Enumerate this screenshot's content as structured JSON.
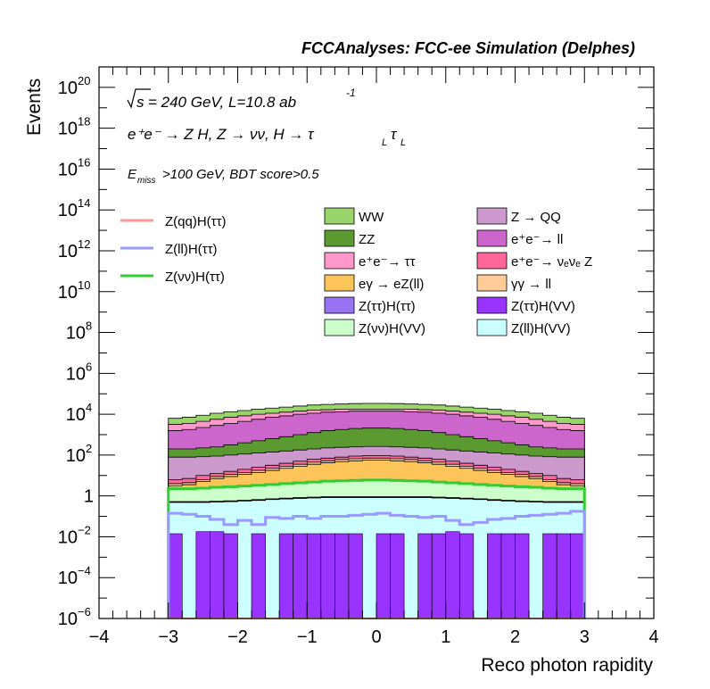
{
  "colors": {
    "WW": "#99d56a",
    "ZZ": "#5a9a31",
    "ee_tautau": "#ff99cc",
    "egamma_eZll": "#fdc559",
    "Ztautau_Htautau": "#9a73f5",
    "Znunu_HVV": "#ccffcc",
    "Z_QQ": "#cc99cc",
    "ee_ll": "#cc66cc",
    "ee_nunuZ": "#ff6699",
    "gammagamma_ll": "#ffcc99",
    "Ztautau_HVV": "#9933ff",
    "Zll_HVV": "#ccffff",
    "Zqq_Htautau_line": "#ff9999",
    "Zll_Htautau_line": "#9999ff",
    "Znunu_Htautau_line": "#33cc33"
  },
  "chart_data": {
    "type": "bar",
    "title": "FCCAnalyses: FCC-ee Simulation (Delphes)",
    "xlabel": "Reco photon rapidity",
    "ylabel": "Events",
    "xlim": [
      -4,
      4
    ],
    "ylim_log10": [
      -6,
      21
    ],
    "log_y": true,
    "x_ticks": [
      "−4",
      "−3",
      "−2",
      "−1",
      "0",
      "1",
      "2",
      "3",
      "4"
    ],
    "y_ticks": [
      {
        "base": "10",
        "exp": "−6"
      },
      {
        "base": "10",
        "exp": "−4"
      },
      {
        "base": "10",
        "exp": "−2"
      },
      {
        "base": "1",
        "exp": ""
      },
      {
        "base": "10",
        "exp": "2"
      },
      {
        "base": "10",
        "exp": "4"
      },
      {
        "base": "10",
        "exp": "6"
      },
      {
        "base": "10",
        "exp": "8"
      },
      {
        "base": "10",
        "exp": "10"
      },
      {
        "base": "10",
        "exp": "12"
      },
      {
        "base": "10",
        "exp": "14"
      },
      {
        "base": "10",
        "exp": "16"
      },
      {
        "base": "10",
        "exp": "18"
      },
      {
        "base": "10",
        "exp": "20"
      }
    ],
    "annotations": {
      "energy_sqrt": "s",
      "energy_rest": " = 240 GeV, L=10.8 ab",
      "energy_sup": "-1",
      "process_main": "e⁺e⁻ → Z H, Z → νν, H → τ",
      "process_sub1": "L",
      "process_tau2": "τ",
      "process_sub2": "L",
      "cut_E": "E",
      "cut_sub": "miss",
      "cut_rest": ">100 GeV, BDT score>0.5"
    },
    "x_bins_from": -3,
    "x_bins_to": 3,
    "n_bins": 30,
    "series_stack_order": [
      "Zll_HVV",
      "Ztautau_HVV",
      "Ztautau_Htautau",
      "Znunu_HVV",
      "egamma_eZll",
      "gammagamma_ll",
      "ee_nunuZ",
      "Z_QQ",
      "ZZ",
      "ee_ll",
      "ee_tautau",
      "WW"
    ],
    "stack_tops_log10": {
      "Zll_HVV": [
        -0.32,
        -0.32,
        -0.32,
        -0.3,
        -0.28,
        -0.25,
        -0.22,
        -0.18,
        -0.15,
        -0.12,
        -0.1,
        -0.08,
        -0.08,
        -0.08,
        -0.08,
        -0.08,
        -0.08,
        -0.08,
        -0.08,
        -0.1,
        -0.12,
        -0.15,
        -0.18,
        -0.22,
        -0.25,
        -0.28,
        -0.3,
        -0.32,
        -0.32,
        -0.32
      ],
      "Ztautau_HVV": [
        -0.3,
        -0.3,
        -0.3,
        -0.28,
        -0.26,
        -0.23,
        -0.2,
        -0.16,
        -0.13,
        -0.1,
        -0.08,
        -0.06,
        -0.06,
        -0.06,
        -0.06,
        -0.06,
        -0.06,
        -0.06,
        -0.06,
        -0.08,
        -0.1,
        -0.13,
        -0.16,
        -0.2,
        -0.23,
        -0.26,
        -0.28,
        -0.3,
        -0.3,
        -0.3
      ],
      "Ztautau_Htautau": [
        -0.28,
        -0.28,
        -0.28,
        -0.26,
        -0.24,
        -0.21,
        -0.18,
        -0.14,
        -0.11,
        -0.08,
        -0.06,
        -0.04,
        -0.04,
        -0.04,
        -0.04,
        -0.04,
        -0.04,
        -0.04,
        -0.04,
        -0.06,
        -0.08,
        -0.11,
        -0.14,
        -0.18,
        -0.21,
        -0.24,
        -0.26,
        -0.28,
        -0.28,
        -0.28
      ],
      "Znunu_HVV": [
        0.35,
        0.35,
        0.38,
        0.42,
        0.45,
        0.48,
        0.52,
        0.56,
        0.6,
        0.64,
        0.68,
        0.72,
        0.74,
        0.76,
        0.78,
        0.78,
        0.76,
        0.74,
        0.72,
        0.68,
        0.64,
        0.6,
        0.56,
        0.52,
        0.48,
        0.45,
        0.42,
        0.38,
        0.35,
        0.35
      ],
      "egamma_eZll": [
        0.5,
        0.55,
        0.7,
        0.85,
        0.95,
        1.05,
        1.15,
        1.25,
        1.35,
        1.45,
        1.55,
        1.62,
        1.68,
        1.72,
        1.75,
        1.75,
        1.72,
        1.68,
        1.62,
        1.55,
        1.45,
        1.35,
        1.25,
        1.15,
        1.05,
        0.95,
        0.85,
        0.7,
        0.55,
        0.5
      ],
      "gammagamma_ll": [
        0.6,
        0.65,
        0.8,
        0.95,
        1.05,
        1.15,
        1.25,
        1.35,
        1.45,
        1.55,
        1.65,
        1.72,
        1.78,
        1.82,
        1.85,
        1.85,
        1.82,
        1.78,
        1.72,
        1.65,
        1.55,
        1.45,
        1.35,
        1.25,
        1.15,
        1.05,
        0.95,
        0.8,
        0.65,
        0.6
      ],
      "ee_nunuZ": [
        0.8,
        0.85,
        1.0,
        1.1,
        1.2,
        1.3,
        1.4,
        1.5,
        1.6,
        1.7,
        1.8,
        1.85,
        1.9,
        1.95,
        1.98,
        1.98,
        1.95,
        1.9,
        1.85,
        1.8,
        1.7,
        1.6,
        1.5,
        1.4,
        1.3,
        1.2,
        1.1,
        1.0,
        0.85,
        0.8
      ],
      "Z_QQ": [
        1.9,
        1.9,
        1.92,
        1.95,
        2.0,
        2.05,
        2.1,
        2.15,
        2.2,
        2.25,
        2.3,
        2.35,
        2.38,
        2.4,
        2.42,
        2.42,
        2.4,
        2.38,
        2.35,
        2.3,
        2.25,
        2.2,
        2.15,
        2.1,
        2.05,
        2.0,
        1.95,
        1.92,
        1.9,
        1.9
      ],
      "ZZ": [
        2.3,
        2.3,
        2.35,
        2.4,
        2.5,
        2.6,
        2.7,
        2.8,
        2.9,
        3.0,
        3.1,
        3.2,
        3.25,
        3.3,
        3.32,
        3.32,
        3.3,
        3.25,
        3.2,
        3.1,
        3.0,
        2.9,
        2.8,
        2.7,
        2.6,
        2.5,
        2.4,
        2.35,
        2.3,
        2.3
      ],
      "ee_ll": [
        3.2,
        3.25,
        3.35,
        3.45,
        3.55,
        3.65,
        3.75,
        3.85,
        3.92,
        4.0,
        4.05,
        4.1,
        4.12,
        4.15,
        4.15,
        4.15,
        4.15,
        4.12,
        4.1,
        4.05,
        4.0,
        3.92,
        3.85,
        3.75,
        3.65,
        3.55,
        3.45,
        3.35,
        3.25,
        3.2
      ],
      "ee_tautau": [
        3.5,
        3.55,
        3.65,
        3.75,
        3.85,
        3.92,
        4.0,
        4.05,
        4.1,
        4.15,
        4.2,
        4.22,
        4.25,
        4.25,
        4.25,
        4.25,
        4.25,
        4.25,
        4.22,
        4.2,
        4.15,
        4.1,
        4.05,
        4.0,
        3.92,
        3.85,
        3.75,
        3.65,
        3.55,
        3.5
      ],
      "WW": [
        3.8,
        3.85,
        3.95,
        4.05,
        4.12,
        4.18,
        4.25,
        4.3,
        4.35,
        4.4,
        4.45,
        4.48,
        4.5,
        4.52,
        4.53,
        4.53,
        4.52,
        4.5,
        4.48,
        4.45,
        4.4,
        4.35,
        4.3,
        4.25,
        4.18,
        4.12,
        4.05,
        3.95,
        3.85,
        3.8
      ]
    },
    "ztautau_hvv_spikes_log10": [
      -1.85,
      -6,
      -1.75,
      -1.75,
      -1.85,
      -6,
      -1.85,
      -6,
      -1.85,
      -1.85,
      -1.85,
      -1.85,
      -1.85,
      -1.85,
      -6,
      -1.85,
      -1.85,
      -6,
      -1.85,
      -1.85,
      -1.75,
      -1.85,
      -6,
      -1.85,
      -1.85,
      -1.85,
      -6,
      -1.85,
      -1.85,
      -1.85
    ],
    "line_series_log10": {
      "Znunu_Htautau_line": [
        0.35,
        0.35,
        0.38,
        0.42,
        0.45,
        0.48,
        0.52,
        0.56,
        0.6,
        0.64,
        0.68,
        0.72,
        0.74,
        0.76,
        0.78,
        0.78,
        0.76,
        0.74,
        0.72,
        0.68,
        0.64,
        0.6,
        0.56,
        0.52,
        0.48,
        0.45,
        0.42,
        0.38,
        0.35,
        0.35
      ],
      "Zll_Htautau_line": [
        -0.85,
        -0.9,
        -1.0,
        -1.15,
        -1.4,
        -1.2,
        -1.4,
        -1.05,
        -1.1,
        -1.0,
        -1.1,
        -1.0,
        -1.0,
        -0.95,
        -0.9,
        -0.85,
        -0.95,
        -1.0,
        -1.05,
        -1.0,
        -1.2,
        -1.4,
        -1.3,
        -1.15,
        -1.1,
        -1.0,
        -0.95,
        -0.9,
        -0.85,
        -0.75
      ],
      "Zqq_Htautau_line": [
        -6.0,
        -6.0,
        -6.0,
        -6.0,
        -6.0,
        -6.0,
        -6.0,
        -6.0,
        -6.0,
        -6.0,
        -6.0,
        -6.0,
        -6.0,
        -6.0,
        -6.0,
        -6.0,
        -6.0,
        -6.0,
        -6.0,
        -6.0,
        -6.0,
        -6.0,
        -6.0,
        -6.0,
        -6.0,
        -6.0,
        -6.0,
        -6.0,
        -6.0,
        -6.0
      ]
    },
    "legend_lines": [
      {
        "key": "Zqq_Htautau_line",
        "label": "Z(qq)H(ττ)"
      },
      {
        "key": "Zll_Htautau_line",
        "label": "Z(ll)H(ττ)"
      },
      {
        "key": "Znunu_Htautau_line",
        "label": "Z(νν)H(ττ)"
      }
    ],
    "legend_boxes": [
      {
        "key": "WW",
        "label": "WW"
      },
      {
        "key": "Z_QQ",
        "label": "Z → QQ"
      },
      {
        "key": "ZZ",
        "label": "ZZ"
      },
      {
        "key": "ee_ll",
        "label": "e⁺e⁻→ ll"
      },
      {
        "key": "ee_tautau",
        "label": "e⁺e⁻→ ττ"
      },
      {
        "key": "ee_nunuZ",
        "label": "e⁺e⁻→ νₑνₑ Z"
      },
      {
        "key": "egamma_eZll",
        "label": "eγ → eZ(ll)"
      },
      {
        "key": "gammagamma_ll",
        "label": "γγ → ll"
      },
      {
        "key": "Ztautau_Htautau",
        "label": "Z(ττ)H(ττ)"
      },
      {
        "key": "Ztautau_HVV",
        "label": "Z(ττ)H(VV)"
      },
      {
        "key": "Znunu_HVV",
        "label": "Z(νν)H(VV)"
      },
      {
        "key": "Zll_HVV",
        "label": "Z(ll)H(VV)"
      }
    ]
  }
}
